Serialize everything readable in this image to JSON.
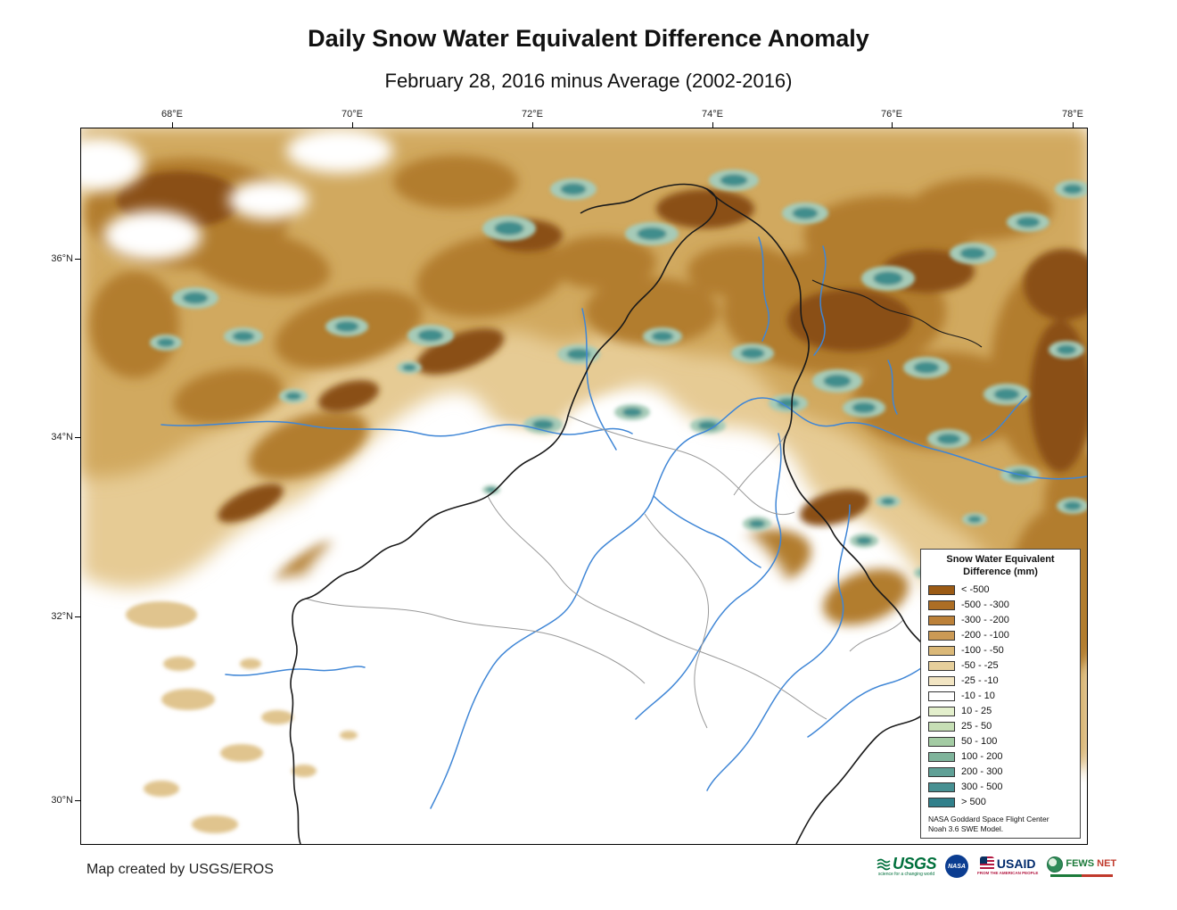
{
  "title": "Daily Snow Water Equivalent Difference Anomaly",
  "subtitle": "February 28, 2016 minus Average (2002-2016)",
  "map": {
    "x_ticks": [
      "68°E",
      "70°E",
      "72°E",
      "74°E",
      "76°E",
      "78°E"
    ],
    "y_ticks": [
      "36°N",
      "34°N",
      "32°N",
      "30°N"
    ]
  },
  "legend": {
    "title_line1": "Snow Water Equivalent",
    "title_line2": "Difference (mm)",
    "entries": [
      {
        "label": "< -500",
        "color": "#9b5a14"
      },
      {
        "label": "-500 - -300",
        "color": "#ad6e24"
      },
      {
        "label": "-300 - -200",
        "color": "#bc8139"
      },
      {
        "label": "-200 - -100",
        "color": "#cb9a55"
      },
      {
        "label": "-100 - -50",
        "color": "#dab878"
      },
      {
        "label": "-50 - -25",
        "color": "#e6cf9b"
      },
      {
        "label": "-25 - -10",
        "color": "#f2e5c3"
      },
      {
        "label": "-10 - 10",
        "color": "#ffffff"
      },
      {
        "label": "10 - 25",
        "color": "#e3efcc"
      },
      {
        "label": "25 - 50",
        "color": "#c6dfb5"
      },
      {
        "label": "50 - 100",
        "color": "#a3cba3"
      },
      {
        "label": "100 - 200",
        "color": "#7fb49b"
      },
      {
        "label": "200 - 300",
        "color": "#5fa096"
      },
      {
        "label": "300 - 500",
        "color": "#479092"
      },
      {
        "label": "> 500",
        "color": "#31808b"
      }
    ],
    "note_line1": "NASA Goddard Space Flight Center",
    "note_line2": "Noah 3.6  SWE Model."
  },
  "footer": {
    "credit": "Map created by USGS/EROS",
    "logos": {
      "usgs": {
        "name": "USGS",
        "tagline": "science for a changing world"
      },
      "nasa": {
        "name": "NASA"
      },
      "usaid": {
        "name": "USAID",
        "tagline": "FROM THE AMERICAN PEOPLE"
      },
      "fewsnet": {
        "name_green": "FEWS",
        "name_red": "NET"
      }
    }
  }
}
